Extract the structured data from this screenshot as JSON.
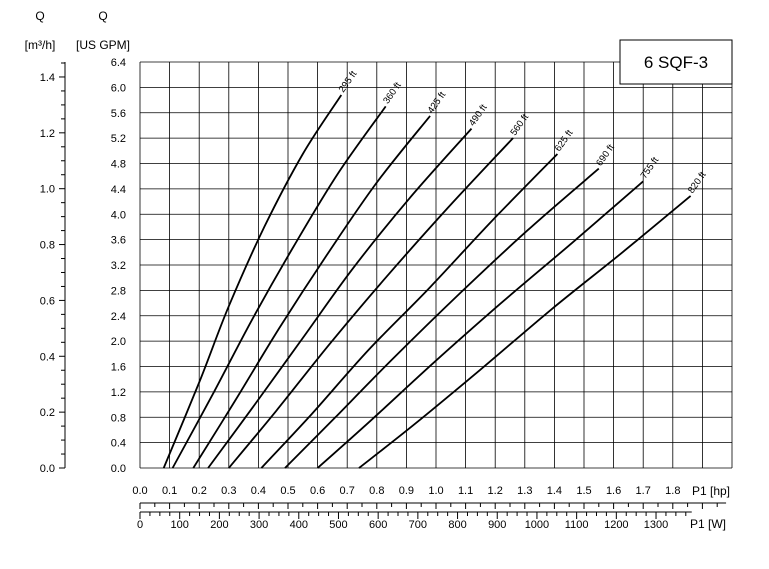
{
  "chart_data": {
    "type": "line",
    "title": "6 SQF-3",
    "x_primary": {
      "label": "P1 [hp]",
      "range": [
        0,
        2.0
      ],
      "ticks": [
        "0.0",
        "0.1",
        "0.2",
        "0.3",
        "0.4",
        "0.5",
        "0.6",
        "0.7",
        "0.8",
        "0.9",
        "1.0",
        "1.1",
        "1.2",
        "1.3",
        "1.4",
        "1.5",
        "1.6",
        "1.7",
        "1.8"
      ]
    },
    "x_secondary": {
      "label": "P1 [W]",
      "ticks": [
        "0",
        "100",
        "200",
        "300",
        "400",
        "500",
        "600",
        "700",
        "800",
        "900",
        "1000",
        "1100",
        "1200",
        "1300"
      ]
    },
    "y_primary": {
      "label_top": "Q",
      "label_unit": "[US GPM]",
      "range": [
        0,
        6.4
      ],
      "ticks": [
        "0.0",
        "0.4",
        "0.8",
        "1.2",
        "1.6",
        "2.0",
        "2.4",
        "2.8",
        "3.2",
        "3.6",
        "4.0",
        "4.4",
        "4.8",
        "5.2",
        "5.6",
        "6.0",
        "6.4"
      ]
    },
    "y_secondary": {
      "label_top": "Q",
      "label_unit": "[m³/h]",
      "ticks": [
        "0.0",
        "0.2",
        "0.4",
        "0.6",
        "0.8",
        "1.0",
        "1.2",
        "1.4"
      ]
    },
    "grid": true,
    "series": [
      {
        "name": "295 ft",
        "x": [
          0.08,
          0.2,
          0.3,
          0.42,
          0.55,
          0.68
        ],
        "y": [
          0.0,
          1.35,
          2.55,
          3.8,
          4.95,
          5.88
        ]
      },
      {
        "name": "360 ft",
        "x": [
          0.11,
          0.25,
          0.38,
          0.52,
          0.67,
          0.83
        ],
        "y": [
          0.0,
          1.2,
          2.35,
          3.5,
          4.65,
          5.7
        ]
      },
      {
        "name": "425 ft",
        "x": [
          0.18,
          0.32,
          0.47,
          0.63,
          0.8,
          0.98
        ],
        "y": [
          0.0,
          1.05,
          2.2,
          3.35,
          4.5,
          5.55
        ]
      },
      {
        "name": "490 ft",
        "x": [
          0.23,
          0.38,
          0.55,
          0.72,
          0.91,
          1.12
        ],
        "y": [
          0.0,
          0.95,
          2.05,
          3.15,
          4.25,
          5.35
        ]
      },
      {
        "name": "560 ft",
        "x": [
          0.3,
          0.46,
          0.64,
          0.83,
          1.04,
          1.26
        ],
        "y": [
          0.0,
          0.9,
          1.95,
          3.0,
          4.1,
          5.2
        ]
      },
      {
        "name": "625 ft",
        "x": [
          0.41,
          0.58,
          0.77,
          0.98,
          1.19,
          1.41
        ],
        "y": [
          0.0,
          0.85,
          1.85,
          2.85,
          3.9,
          4.95
        ]
      },
      {
        "name": "690 ft",
        "x": [
          0.49,
          0.66,
          0.86,
          1.08,
          1.31,
          1.55
        ],
        "y": [
          0.0,
          0.8,
          1.75,
          2.75,
          3.75,
          4.72
        ]
      },
      {
        "name": "755 ft",
        "x": [
          0.6,
          0.78,
          0.99,
          1.22,
          1.46,
          1.7
        ],
        "y": [
          0.0,
          0.75,
          1.65,
          2.6,
          3.55,
          4.52
        ]
      },
      {
        "name": "820 ft",
        "x": [
          0.74,
          0.93,
          1.15,
          1.39,
          1.63,
          1.86
        ],
        "y": [
          0.0,
          0.7,
          1.55,
          2.5,
          3.4,
          4.29
        ]
      }
    ]
  }
}
